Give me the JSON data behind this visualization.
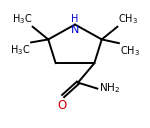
{
  "background_color": "#ffffff",
  "ring_color": "#000000",
  "nh_color": "#0000cc",
  "o_color": "#cc0000",
  "text_color": "#000000",
  "fig_width": 1.5,
  "fig_height": 1.28,
  "dpi": 100,
  "xlim": [
    0,
    10
  ],
  "ylim": [
    0,
    8.5
  ],
  "N": [
    5.0,
    6.9
  ],
  "C2": [
    6.8,
    5.9
  ],
  "C3": [
    6.3,
    4.3
  ],
  "C4": [
    3.7,
    4.3
  ],
  "C5": [
    3.2,
    5.9
  ],
  "Ccarb": [
    5.2,
    3.0
  ],
  "O": [
    4.2,
    2.1
  ],
  "NH2": [
    6.5,
    2.6
  ]
}
